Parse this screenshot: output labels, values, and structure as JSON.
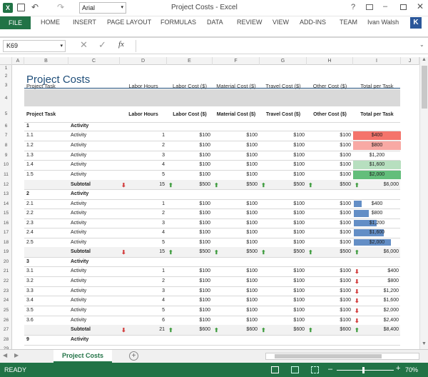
{
  "window": {
    "title": "Project Costs - Excel",
    "font_name": "Arial",
    "help": "?",
    "user": "Ivan Walsh",
    "avatar_letter": "K"
  },
  "ribbon": {
    "tabs": [
      "FILE",
      "HOME",
      "INSERT",
      "PAGE LAYOUT",
      "FORMULAS",
      "DATA",
      "REVIEW",
      "VIEW",
      "ADD-INS",
      "TEAM"
    ]
  },
  "formula": {
    "name_box": "K69",
    "fx": "fx",
    "value": ""
  },
  "columns": [
    "A",
    "B",
    "C",
    "D",
    "E",
    "F",
    "G",
    "H",
    "I",
    "J"
  ],
  "rows": [
    "1",
    "2",
    "3",
    "4",
    "5",
    "6",
    "7",
    "8",
    "9",
    "10",
    "11",
    "12",
    "13",
    "14",
    "15",
    "16",
    "17",
    "18",
    "19",
    "20",
    "21",
    "22",
    "23",
    "24",
    "25",
    "26",
    "27",
    "28",
    "29"
  ],
  "sheet": {
    "title": "Project Costs",
    "header_row": [
      "Project Task",
      "Labor Hours",
      "Labor Cost ($)",
      "Material Cost ($)",
      "Travel Cost ($)",
      "Other Cost ($)",
      "Total per Task"
    ],
    "header_bold": [
      "Project Task",
      "Labor Hours",
      "Labor Cost ($)",
      "Material Cost ($)",
      "Travel Cost ($)",
      "Other Cost ($)",
      "Total per Task"
    ],
    "groups": [
      {
        "id": "1",
        "label": "Activity",
        "rows": [
          {
            "t": "1.1",
            "a": "Activity",
            "h": "1",
            "lc": "$100",
            "mc": "$100",
            "tc": "$100",
            "oc": "$100",
            "tot": "$400"
          },
          {
            "t": "1.2",
            "a": "Activity",
            "h": "2",
            "lc": "$100",
            "mc": "$100",
            "tc": "$100",
            "oc": "$100",
            "tot": "$800"
          },
          {
            "t": "1.3",
            "a": "Activity",
            "h": "3",
            "lc": "$100",
            "mc": "$100",
            "tc": "$100",
            "oc": "$100",
            "tot": "$1,200"
          },
          {
            "t": "1.4",
            "a": "Activity",
            "h": "4",
            "lc": "$100",
            "mc": "$100",
            "tc": "$100",
            "oc": "$100",
            "tot": "$1,600"
          },
          {
            "t": "1.5",
            "a": "Activity",
            "h": "5",
            "lc": "$100",
            "mc": "$100",
            "tc": "$100",
            "oc": "$100",
            "tot": "$2,000"
          }
        ],
        "subtotal": {
          "label": "Subtotal",
          "h": "15",
          "lc": "$500",
          "mc": "$500",
          "tc": "$500",
          "oc": "$500",
          "tot": "$6,000"
        }
      },
      {
        "id": "2",
        "label": "Activity",
        "rows": [
          {
            "t": "2.1",
            "a": "Activity",
            "h": "1",
            "lc": "$100",
            "mc": "$100",
            "tc": "$100",
            "oc": "$100",
            "tot": "$400"
          },
          {
            "t": "2.2",
            "a": "Activity",
            "h": "2",
            "lc": "$100",
            "mc": "$100",
            "tc": "$100",
            "oc": "$100",
            "tot": "$800"
          },
          {
            "t": "2.3",
            "a": "Activity",
            "h": "3",
            "lc": "$100",
            "mc": "$100",
            "tc": "$100",
            "oc": "$100",
            "tot": "$1,200"
          },
          {
            "t": "2.4",
            "a": "Activity",
            "h": "4",
            "lc": "$100",
            "mc": "$100",
            "tc": "$100",
            "oc": "$100",
            "tot": "$1,600"
          },
          {
            "t": "2.5",
            "a": "Activity",
            "h": "5",
            "lc": "$100",
            "mc": "$100",
            "tc": "$100",
            "oc": "$100",
            "tot": "$2,000"
          }
        ],
        "subtotal": {
          "label": "Subtotal",
          "h": "15",
          "lc": "$500",
          "mc": "$500",
          "tc": "$500",
          "oc": "$500",
          "tot": "$6,000"
        }
      },
      {
        "id": "3",
        "label": "Activity",
        "rows": [
          {
            "t": "3.1",
            "a": "Activity",
            "h": "1",
            "lc": "$100",
            "mc": "$100",
            "tc": "$100",
            "oc": "$100",
            "tot": "$400"
          },
          {
            "t": "3.2",
            "a": "Activity",
            "h": "2",
            "lc": "$100",
            "mc": "$100",
            "tc": "$100",
            "oc": "$100",
            "tot": "$800"
          },
          {
            "t": "3.3",
            "a": "Activity",
            "h": "3",
            "lc": "$100",
            "mc": "$100",
            "tc": "$100",
            "oc": "$100",
            "tot": "$1,200"
          },
          {
            "t": "3.4",
            "a": "Activity",
            "h": "4",
            "lc": "$100",
            "mc": "$100",
            "tc": "$100",
            "oc": "$100",
            "tot": "$1,600"
          },
          {
            "t": "3.5",
            "a": "Activity",
            "h": "5",
            "lc": "$100",
            "mc": "$100",
            "tc": "$100",
            "oc": "$100",
            "tot": "$2,000"
          },
          {
            "t": "3.6",
            "a": "Activity",
            "h": "6",
            "lc": "$100",
            "mc": "$100",
            "tc": "$100",
            "oc": "$100",
            "tot": "$2,400"
          }
        ],
        "subtotal": {
          "label": "Subtotal",
          "h": "21",
          "lc": "$600",
          "mc": "$600",
          "tc": "$600",
          "oc": "$600",
          "tot": "$8,400"
        }
      },
      {
        "id": "9",
        "label": "Activity",
        "rows": [],
        "subtotal": null
      }
    ],
    "total_fractions": [
      0.167,
      0.333,
      0.5,
      0.667,
      0.833
    ],
    "colors": {
      "accent": "#217346",
      "title": "#1f4e79",
      "header_fill": "#d9d9d9",
      "subtotal_fill": "#f2f2f2",
      "red1": "#f4746b",
      "red2": "#f8a9a4",
      "green1": "#b7dfbf",
      "green2": "#63be7b",
      "bar": "#638ec6",
      "up": "#3a9a3a",
      "down": "#d23b3b"
    }
  },
  "tabs": {
    "active": "Project Costs",
    "add": "+"
  },
  "status": {
    "ready": "READY",
    "zoom": "70%"
  }
}
